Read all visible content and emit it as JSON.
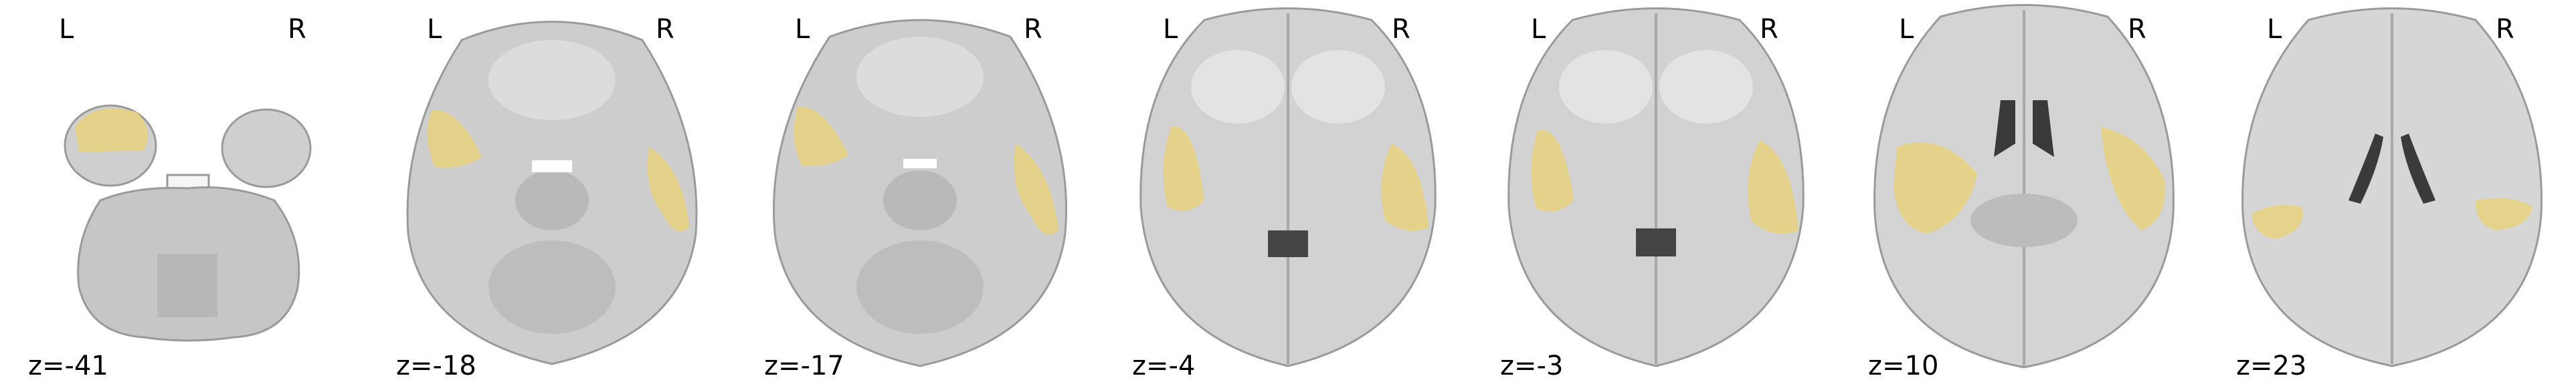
{
  "figure": {
    "orientation_left": "L",
    "orientation_right": "R",
    "slices": [
      {
        "coord": "z=-41"
      },
      {
        "coord": "z=-18"
      },
      {
        "coord": "z=-17"
      },
      {
        "coord": "z=-4"
      },
      {
        "coord": "z=-3"
      },
      {
        "coord": "z=10"
      },
      {
        "coord": "z=23"
      }
    ],
    "overlay_color": "#e9d27a",
    "brain_color": "#bdbdbd"
  }
}
